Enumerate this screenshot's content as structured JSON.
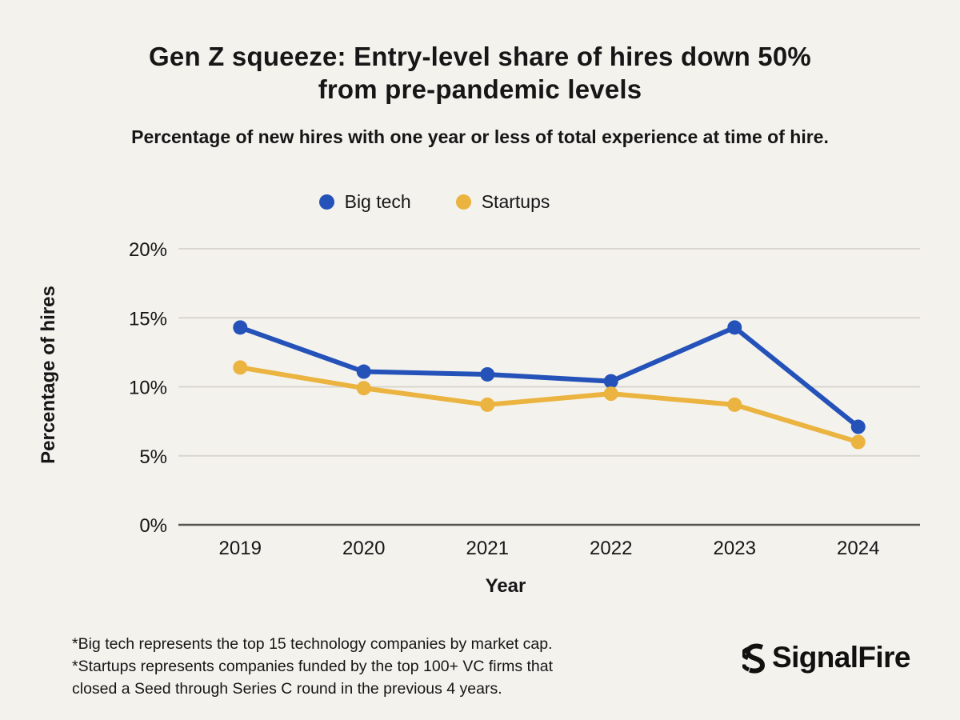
{
  "header": {
    "title": "Gen Z squeeze: Entry-level share of hires down 50%\nfrom pre-pandemic levels",
    "subtitle": "Percentage of new hires with one year or less of total experience at time of hire."
  },
  "chart_data": {
    "type": "line",
    "x": [
      "2019",
      "2020",
      "2021",
      "2022",
      "2023",
      "2024"
    ],
    "series": [
      {
        "name": "Big tech",
        "color": "#2452B9",
        "values": [
          14.3,
          11.1,
          10.9,
          10.4,
          14.3,
          7.1
        ]
      },
      {
        "name": "Startups",
        "color": "#EBB33F",
        "values": [
          11.4,
          9.9,
          8.7,
          9.5,
          8.7,
          6.0
        ]
      }
    ],
    "xlabel": "Year",
    "ylabel": "Percentage of hires",
    "ylim": [
      0,
      20
    ],
    "yticks": [
      0,
      5,
      10,
      15,
      20
    ],
    "ytick_labels": [
      "0%",
      "5%",
      "10%",
      "15%",
      "20%"
    ],
    "grid": true,
    "legend_position": "top-center",
    "marker": "circle"
  },
  "footer": {
    "notes": "*Big tech represents the top 15 technology companies by market cap.\n*Startups represents companies funded by the top 100+ VC firms that\nclosed a Seed through Series C round in the previous 4 years.",
    "logo_text": "SignalFire"
  },
  "colors": {
    "background": "#F4F2ED",
    "text": "#161616",
    "gridline": "#D9D6CF",
    "axis_line": "#55544F",
    "big_tech": "#2452B9",
    "startups": "#EBB33F"
  }
}
